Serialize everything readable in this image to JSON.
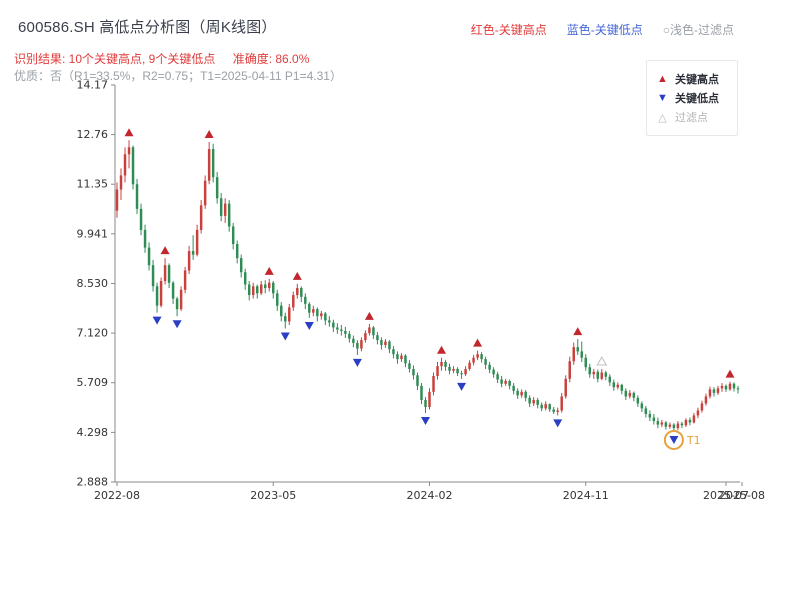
{
  "header": {
    "title": "600586.SH 高低点分析图（周K线图）",
    "legend_top": [
      {
        "label": "红色-关键高点",
        "color": "#e23b3b"
      },
      {
        "label": "蓝色-关键低点",
        "color": "#4767d6"
      },
      {
        "label": "○浅色-过滤点",
        "color": "#9aa0a6"
      }
    ],
    "result_text": "识别结果: 10个关键高点, 9个关键低点",
    "accuracy_text": "准确度: 86.0%",
    "quality_line": "优质：否（R1=33.5%，R2=0.75；T1=2025-04-11 P1=4.31）"
  },
  "chart_legend": {
    "items": [
      {
        "label": "关键高点",
        "glyph": "▲",
        "color": "#c1272d"
      },
      {
        "label": "关键低点",
        "glyph": "▼",
        "color": "#2b3fc4"
      },
      {
        "label": "过滤点",
        "glyph": "△",
        "color": "#b8b8b8"
      }
    ]
  },
  "chart_data": {
    "type": "candlestick",
    "title": "600586.SH 高低点分析图（周K线图）",
    "period": "weekly",
    "ylim": [
      2.888,
      14.17
    ],
    "y_ticks": [
      2.888,
      4.298,
      5.709,
      7.12,
      8.53,
      9.941,
      11.35,
      12.76,
      14.17
    ],
    "y_tick_labels": [
      "2.888",
      "4.298",
      "5.709",
      "7.120",
      "8.530",
      "9.941",
      "11.35",
      "12.76",
      "14.17"
    ],
    "x_tick_labels": [
      "2022-08",
      "2023-05",
      "2024-02",
      "2024-11",
      "2025-07",
      "2025-08"
    ],
    "x_tick_weeks": [
      0,
      39,
      78,
      117,
      152,
      156
    ],
    "up_color": "#c9413c",
    "down_color": "#2f8c55",
    "marker_high_color": "#c1272d",
    "marker_low_color": "#2b3fc4",
    "filtered_color": "#c0c0c0",
    "candles": [
      [
        10.6,
        11.4,
        10.4,
        11.2
      ],
      [
        11.2,
        11.8,
        10.9,
        11.6
      ],
      [
        11.6,
        12.4,
        11.4,
        12.2
      ],
      [
        12.2,
        12.6,
        11.8,
        12.4
      ],
      [
        12.4,
        12.45,
        11.2,
        11.35
      ],
      [
        11.35,
        11.5,
        10.5,
        10.65
      ],
      [
        10.65,
        10.8,
        9.9,
        10.05
      ],
      [
        10.05,
        10.2,
        9.4,
        9.55
      ],
      [
        9.55,
        9.7,
        8.9,
        9.05
      ],
      [
        9.05,
        9.2,
        8.3,
        8.45
      ],
      [
        8.45,
        8.55,
        7.7,
        7.9
      ],
      [
        7.9,
        8.7,
        7.85,
        8.6
      ],
      [
        8.6,
        9.25,
        8.5,
        9.05
      ],
      [
        9.05,
        9.1,
        8.4,
        8.55
      ],
      [
        8.55,
        8.6,
        7.95,
        8.1
      ],
      [
        8.1,
        8.15,
        7.6,
        7.8
      ],
      [
        7.8,
        8.45,
        7.75,
        8.35
      ],
      [
        8.35,
        9.0,
        8.25,
        8.9
      ],
      [
        8.9,
        9.6,
        8.8,
        9.45
      ],
      [
        9.45,
        9.9,
        9.2,
        9.35
      ],
      [
        9.35,
        10.2,
        9.3,
        10.05
      ],
      [
        10.05,
        10.9,
        9.95,
        10.75
      ],
      [
        10.75,
        11.6,
        10.65,
        11.45
      ],
      [
        11.45,
        12.55,
        11.35,
        12.35
      ],
      [
        12.35,
        12.5,
        11.4,
        11.55
      ],
      [
        11.55,
        11.7,
        10.8,
        10.95
      ],
      [
        10.95,
        11.1,
        10.3,
        10.45
      ],
      [
        10.45,
        10.95,
        10.25,
        10.8
      ],
      [
        10.8,
        10.9,
        10.0,
        10.15
      ],
      [
        10.15,
        10.25,
        9.5,
        9.65
      ],
      [
        9.65,
        9.75,
        9.1,
        9.25
      ],
      [
        9.25,
        9.35,
        8.7,
        8.85
      ],
      [
        8.85,
        8.95,
        8.35,
        8.5
      ],
      [
        8.5,
        8.6,
        8.05,
        8.2
      ],
      [
        8.2,
        8.55,
        8.1,
        8.45
      ],
      [
        8.45,
        8.5,
        8.1,
        8.25
      ],
      [
        8.25,
        8.6,
        8.2,
        8.5
      ],
      [
        8.5,
        8.62,
        8.25,
        8.4
      ],
      [
        8.4,
        8.66,
        8.3,
        8.55
      ],
      [
        8.55,
        8.6,
        8.1,
        8.25
      ],
      [
        8.25,
        8.35,
        7.75,
        7.9
      ],
      [
        7.9,
        8.0,
        7.45,
        7.6
      ],
      [
        7.6,
        7.7,
        7.25,
        7.45
      ],
      [
        7.45,
        7.95,
        7.35,
        7.85
      ],
      [
        7.85,
        8.3,
        7.75,
        8.2
      ],
      [
        8.2,
        8.52,
        8.1,
        8.4
      ],
      [
        8.4,
        8.45,
        8.0,
        8.15
      ],
      [
        8.15,
        8.25,
        7.8,
        7.95
      ],
      [
        7.95,
        8.0,
        7.55,
        7.7
      ],
      [
        7.7,
        7.9,
        7.6,
        7.8
      ],
      [
        7.8,
        7.85,
        7.45,
        7.6
      ],
      [
        7.6,
        7.75,
        7.5,
        7.68
      ],
      [
        7.68,
        7.72,
        7.35,
        7.48
      ],
      [
        7.48,
        7.6,
        7.3,
        7.42
      ],
      [
        7.42,
        7.5,
        7.15,
        7.28
      ],
      [
        7.28,
        7.4,
        7.1,
        7.22
      ],
      [
        7.22,
        7.35,
        7.05,
        7.18
      ],
      [
        7.18,
        7.3,
        6.98,
        7.1
      ],
      [
        7.1,
        7.18,
        6.85,
        6.96
      ],
      [
        6.96,
        7.05,
        6.72,
        6.84
      ],
      [
        6.84,
        6.92,
        6.5,
        6.68
      ],
      [
        6.68,
        7.0,
        6.6,
        6.92
      ],
      [
        6.92,
        7.2,
        6.85,
        7.12
      ],
      [
        7.12,
        7.38,
        7.05,
        7.28
      ],
      [
        7.28,
        7.32,
        6.95,
        7.06
      ],
      [
        7.06,
        7.15,
        6.8,
        6.92
      ],
      [
        6.92,
        7.0,
        6.65,
        6.78
      ],
      [
        6.78,
        6.95,
        6.7,
        6.88
      ],
      [
        6.88,
        6.92,
        6.55,
        6.66
      ],
      [
        6.66,
        6.75,
        6.4,
        6.52
      ],
      [
        6.52,
        6.6,
        6.25,
        6.38
      ],
      [
        6.38,
        6.55,
        6.3,
        6.48
      ],
      [
        6.48,
        6.52,
        6.15,
        6.26
      ],
      [
        6.26,
        6.35,
        6.0,
        6.1
      ],
      [
        6.1,
        6.2,
        5.8,
        5.92
      ],
      [
        5.92,
        6.0,
        5.5,
        5.62
      ],
      [
        5.62,
        5.7,
        5.1,
        5.22
      ],
      [
        5.22,
        5.3,
        4.85,
        5.02
      ],
      [
        5.02,
        5.55,
        4.95,
        5.45
      ],
      [
        5.45,
        6.0,
        5.35,
        5.9
      ],
      [
        5.9,
        6.3,
        5.8,
        6.18
      ],
      [
        6.18,
        6.42,
        6.05,
        6.3
      ],
      [
        6.3,
        6.35,
        6.05,
        6.16
      ],
      [
        6.16,
        6.25,
        5.95,
        6.05
      ],
      [
        6.05,
        6.18,
        5.98,
        6.1
      ],
      [
        6.1,
        6.15,
        5.9,
        5.98
      ],
      [
        5.98,
        6.05,
        5.82,
        5.95
      ],
      [
        5.95,
        6.18,
        5.9,
        6.1
      ],
      [
        6.1,
        6.35,
        6.05,
        6.28
      ],
      [
        6.28,
        6.5,
        6.2,
        6.42
      ],
      [
        6.42,
        6.62,
        6.35,
        6.52
      ],
      [
        6.52,
        6.58,
        6.28,
        6.38
      ],
      [
        6.38,
        6.45,
        6.1,
        6.22
      ],
      [
        6.22,
        6.3,
        5.98,
        6.08
      ],
      [
        6.08,
        6.15,
        5.85,
        5.95
      ],
      [
        5.95,
        6.02,
        5.7,
        5.8
      ],
      [
        5.8,
        5.9,
        5.58,
        5.68
      ],
      [
        5.68,
        5.82,
        5.62,
        5.76
      ],
      [
        5.76,
        5.8,
        5.52,
        5.62
      ],
      [
        5.62,
        5.7,
        5.38,
        5.48
      ],
      [
        5.48,
        5.55,
        5.25,
        5.35
      ],
      [
        5.35,
        5.52,
        5.28,
        5.45
      ],
      [
        5.45,
        5.5,
        5.18,
        5.28
      ],
      [
        5.28,
        5.35,
        5.02,
        5.12
      ],
      [
        5.12,
        5.3,
        5.05,
        5.22
      ],
      [
        5.22,
        5.28,
        4.98,
        5.08
      ],
      [
        5.08,
        5.15,
        4.9,
        4.98
      ],
      [
        4.98,
        5.18,
        4.92,
        5.1
      ],
      [
        5.1,
        5.12,
        4.88,
        4.95
      ],
      [
        4.95,
        5.02,
        4.82,
        4.88
      ],
      [
        4.88,
        5.0,
        4.78,
        4.92
      ],
      [
        4.92,
        5.42,
        4.86,
        5.32
      ],
      [
        5.32,
        5.92,
        5.26,
        5.82
      ],
      [
        5.82,
        6.45,
        5.72,
        6.32
      ],
      [
        6.32,
        6.85,
        6.22,
        6.72
      ],
      [
        6.72,
        6.95,
        6.5,
        6.6
      ],
      [
        6.6,
        6.88,
        6.3,
        6.42
      ],
      [
        6.42,
        6.52,
        6.05,
        6.15
      ],
      [
        6.15,
        6.25,
        5.85,
        5.95
      ],
      [
        5.95,
        6.1,
        5.82,
        6.02
      ],
      [
        6.02,
        6.08,
        5.72,
        5.82
      ],
      [
        5.82,
        6.1,
        5.78,
        6.0
      ],
      [
        6.0,
        6.05,
        5.78,
        5.88
      ],
      [
        5.88,
        5.95,
        5.62,
        5.72
      ],
      [
        5.72,
        5.8,
        5.48,
        5.58
      ],
      [
        5.58,
        5.72,
        5.52,
        5.65
      ],
      [
        5.65,
        5.68,
        5.38,
        5.48
      ],
      [
        5.48,
        5.55,
        5.22,
        5.32
      ],
      [
        5.32,
        5.5,
        5.26,
        5.42
      ],
      [
        5.42,
        5.46,
        5.18,
        5.28
      ],
      [
        5.28,
        5.35,
        5.02,
        5.12
      ],
      [
        5.12,
        5.18,
        4.88,
        4.98
      ],
      [
        4.98,
        5.05,
        4.72,
        4.82
      ],
      [
        4.82,
        4.92,
        4.62,
        4.72
      ],
      [
        4.72,
        4.82,
        4.52,
        4.62
      ],
      [
        4.62,
        4.72,
        4.42,
        4.52
      ],
      [
        4.52,
        4.65,
        4.45,
        4.58
      ],
      [
        4.58,
        4.62,
        4.38,
        4.46
      ],
      [
        4.46,
        4.58,
        4.4,
        4.52
      ],
      [
        4.52,
        4.56,
        4.31,
        4.42
      ],
      [
        4.42,
        4.62,
        4.36,
        4.55
      ],
      [
        4.55,
        4.6,
        4.42,
        4.5
      ],
      [
        4.5,
        4.7,
        4.45,
        4.65
      ],
      [
        4.65,
        4.72,
        4.5,
        4.58
      ],
      [
        4.58,
        4.85,
        4.55,
        4.78
      ],
      [
        4.78,
        5.0,
        4.7,
        4.92
      ],
      [
        4.92,
        5.2,
        4.86,
        5.12
      ],
      [
        5.12,
        5.4,
        5.06,
        5.32
      ],
      [
        5.32,
        5.6,
        5.26,
        5.52
      ],
      [
        5.52,
        5.58,
        5.32,
        5.42
      ],
      [
        5.42,
        5.62,
        5.36,
        5.55
      ],
      [
        5.55,
        5.7,
        5.45,
        5.62
      ],
      [
        5.62,
        5.66,
        5.45,
        5.52
      ],
      [
        5.52,
        5.74,
        5.48,
        5.68
      ],
      [
        5.68,
        5.72,
        5.46,
        5.55
      ],
      [
        5.55,
        5.62,
        5.4,
        5.52
      ]
    ],
    "key_highs": [
      3,
      12,
      23,
      38,
      45,
      63,
      81,
      90,
      115,
      153
    ],
    "key_lows": [
      10,
      15,
      42,
      48,
      60,
      77,
      86,
      110,
      139
    ],
    "filtered": [
      {
        "week": 121,
        "kind": "high"
      }
    ],
    "annotation": {
      "label": "T1",
      "week": 139,
      "price": 4.31,
      "date": "2025-04-11",
      "color": "#e6a23c"
    }
  }
}
